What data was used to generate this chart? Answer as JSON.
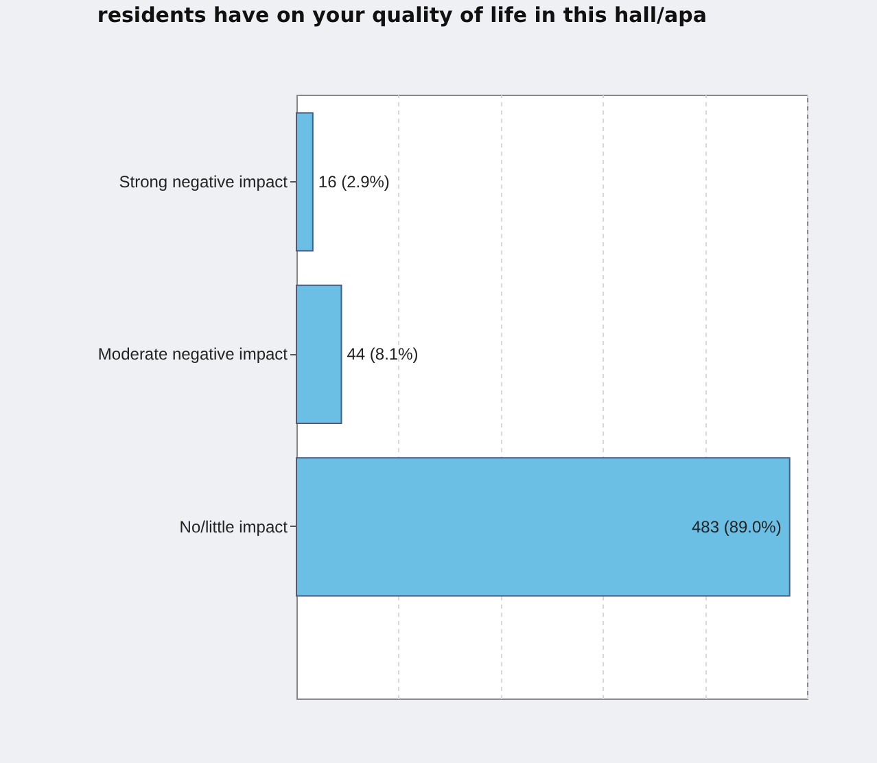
{
  "chart_data": {
    "type": "bar",
    "orientation": "horizontal",
    "title": "residents have on your quality of life in this hall/apa",
    "categories": [
      "Strong negative impact",
      "Moderate negative impact",
      "No/little impact"
    ],
    "values": [
      16,
      44,
      483
    ],
    "value_labels": [
      "16 (2.9%)",
      "44 (8.1%)",
      "483 (89.0%)"
    ],
    "color": "#6bbfe4",
    "xlim": [
      0,
      500
    ],
    "xticks": [
      {
        "value": 0,
        "label": null
      },
      {
        "value": 100,
        "label": null
      },
      {
        "value": 200,
        "label": null
      },
      {
        "value": 300,
        "label": null
      },
      {
        "value": 400,
        "label": null
      },
      {
        "value": 500,
        "label": null
      }
    ],
    "grid": "x",
    "tick_labels": "y"
  }
}
